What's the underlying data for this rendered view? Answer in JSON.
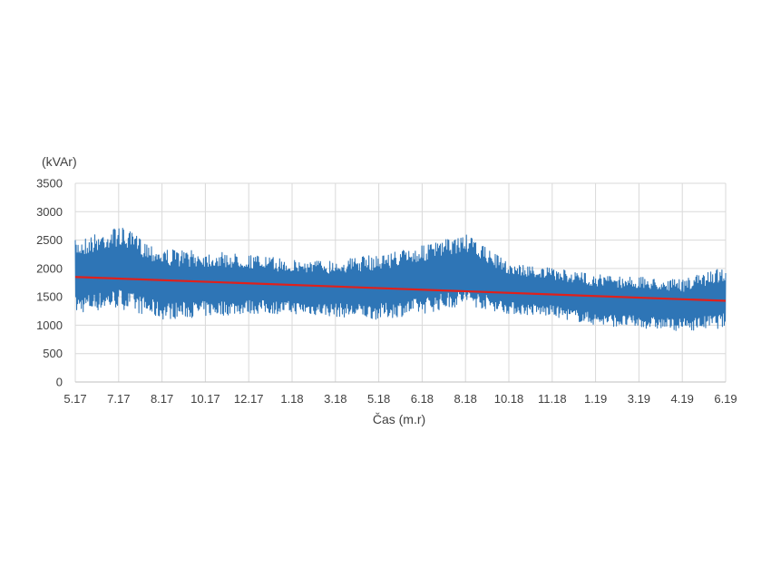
{
  "chart_data": {
    "type": "line",
    "title": "",
    "xlabel": "Čas (m.r)",
    "ylabel": "(kVAr)",
    "ylim": [
      0,
      3500
    ],
    "yticks": [
      0,
      500,
      1000,
      1500,
      2000,
      2500,
      3000,
      3500
    ],
    "xticks": [
      "5.17",
      "7.17",
      "8.17",
      "10.17",
      "12.17",
      "1.18",
      "3.18",
      "5.18",
      "6.18",
      "8.18",
      "10.18",
      "11.18",
      "1.19",
      "3.19",
      "4.19",
      "6.19"
    ],
    "grid": true,
    "legend": "none",
    "colors": {
      "series": "#2E75B6",
      "trend": "#E0201B",
      "grid": "#D9D9D9",
      "axis": "#BFBFBF"
    },
    "series": [
      {
        "style": "band",
        "x": [
          "5.17",
          "7.17",
          "8.17",
          "10.17",
          "12.17",
          "1.18",
          "3.18",
          "5.18",
          "6.18",
          "8.18",
          "10.18",
          "11.18",
          "1.19",
          "3.19",
          "4.19",
          "6.19"
        ],
        "upper": [
          2500,
          2750,
          2350,
          2300,
          2250,
          2150,
          2150,
          2250,
          2400,
          2600,
          2100,
          2000,
          1900,
          1850,
          1800,
          2050
        ],
        "lower": [
          1200,
          1300,
          1100,
          1150,
          1200,
          1200,
          1150,
          1100,
          1200,
          1350,
          1200,
          1150,
          1000,
          950,
          900,
          950
        ]
      },
      {
        "style": "trend",
        "x": [
          "5.17",
          "6.19"
        ],
        "values": [
          1850,
          1430
        ]
      }
    ]
  }
}
